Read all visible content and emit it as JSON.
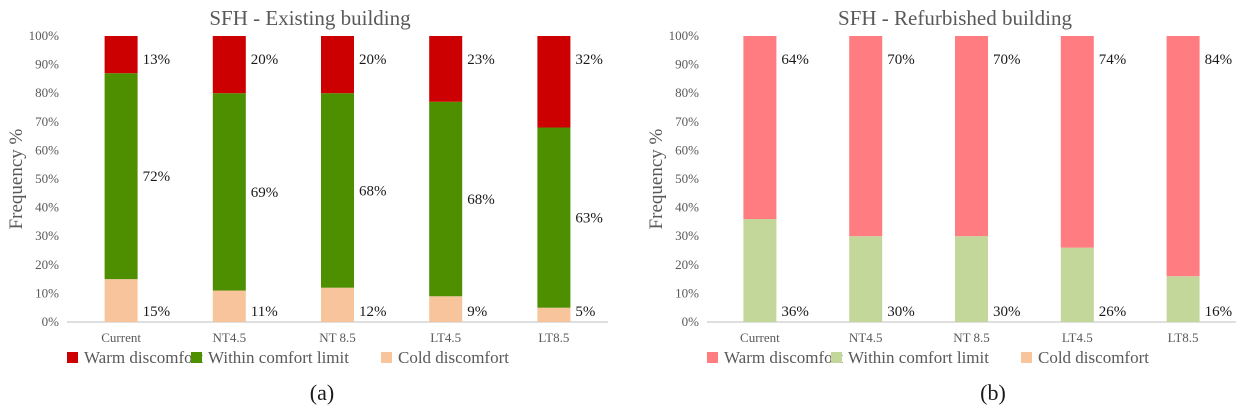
{
  "panels": [
    {
      "label": "(a)",
      "chart_data": {
        "type": "bar",
        "stacked": true,
        "title": "SFH - Existing building",
        "ylabel": "Frequency %",
        "xlabel": "",
        "ylim": [
          0,
          100
        ],
        "yticks": [
          "0%",
          "10%",
          "20%",
          "30%",
          "40%",
          "50%",
          "60%",
          "70%",
          "80%",
          "90%",
          "100%"
        ],
        "categories": [
          "Current",
          "NT4.5",
          "NT 8.5",
          "LT4.5",
          "LT8.5"
        ],
        "series": [
          {
            "name": "Warm discomfort",
            "color": "#cc0000",
            "values": [
              13,
              20,
              20,
              23,
              32
            ],
            "labels": [
              "13%",
              "20%",
              "20%",
              "23%",
              "32%"
            ]
          },
          {
            "name": "Within comfort limit",
            "color": "#4e8f00",
            "values": [
              72,
              69,
              68,
              68,
              63
            ],
            "labels": [
              "72%",
              "69%",
              "68%",
              "68%",
              "63%"
            ]
          },
          {
            "name": "Cold discomfort",
            "color": "#f8c49c",
            "values": [
              15,
              11,
              12,
              9,
              5
            ],
            "labels": [
              "15%",
              "11%",
              "12%",
              "9%",
              "5%"
            ]
          }
        ],
        "grid": false,
        "legend_position": "bottom"
      }
    },
    {
      "label": "(b)",
      "chart_data": {
        "type": "bar",
        "stacked": true,
        "title": "SFH - Refurbished building",
        "ylabel": "Frequency %",
        "xlabel": "",
        "ylim": [
          0,
          100
        ],
        "yticks": [
          "0%",
          "10%",
          "20%",
          "30%",
          "40%",
          "50%",
          "60%",
          "70%",
          "80%",
          "90%",
          "100%"
        ],
        "categories": [
          "Current",
          "NT4.5",
          "NT 8.5",
          "LT4.5",
          "LT8.5"
        ],
        "series": [
          {
            "name": "Warm discomfort",
            "color": "#ff7c80",
            "values": [
              64,
              70,
              70,
              74,
              84
            ],
            "labels": [
              "64%",
              "70%",
              "70%",
              "74%",
              "84%"
            ]
          },
          {
            "name": "Within comfort limit",
            "color": "#c4d79b",
            "values": [
              36,
              30,
              30,
              26,
              16
            ],
            "labels": [
              "36%",
              "30%",
              "30%",
              "26%",
              "16%"
            ]
          },
          {
            "name": "Cold discomfort",
            "color": "#f8c49c",
            "values": [
              0,
              0,
              0,
              0,
              0
            ],
            "labels": []
          }
        ],
        "grid": false,
        "legend_position": "bottom"
      }
    }
  ]
}
